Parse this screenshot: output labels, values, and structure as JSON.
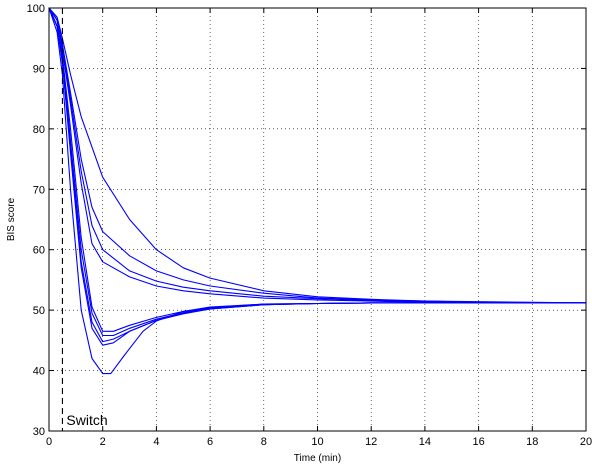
{
  "chart_data": {
    "type": "line",
    "title": "",
    "xlabel": "Time (min)",
    "ylabel": "BIS score",
    "xlim": [
      0,
      20
    ],
    "ylim": [
      30,
      100
    ],
    "xticks": [
      0,
      2,
      4,
      6,
      8,
      10,
      12,
      14,
      16,
      18,
      20
    ],
    "yticks": [
      30,
      40,
      50,
      60,
      70,
      80,
      90,
      100
    ],
    "grid": true,
    "line_color": "#0000ff",
    "annotation": {
      "text": "Switch",
      "x": 0.5
    },
    "series": [
      {
        "x": [
          0,
          0.3,
          0.5,
          0.8,
          1.2,
          2,
          3,
          4,
          5,
          6,
          8,
          10,
          12,
          14,
          16,
          18,
          20
        ],
        "y": [
          100,
          98.5,
          95,
          89,
          82,
          72,
          65,
          60,
          57,
          55.3,
          53.2,
          52.2,
          51.8,
          51.5,
          51.4,
          51.3,
          51.2
        ]
      },
      {
        "x": [
          0,
          0.3,
          0.5,
          0.8,
          1.2,
          1.6,
          2,
          3,
          4,
          5,
          6,
          8,
          10,
          12,
          14,
          16,
          18,
          20
        ],
        "y": [
          100,
          98,
          94,
          86,
          75,
          67,
          63,
          59,
          56.5,
          55,
          54,
          52.8,
          52,
          51.7,
          51.5,
          51.3,
          51.2,
          51.2
        ]
      },
      {
        "x": [
          0,
          0.3,
          0.5,
          0.8,
          1.2,
          1.6,
          2,
          3,
          4,
          5,
          6,
          8,
          10,
          12,
          14,
          16,
          18,
          20
        ],
        "y": [
          100,
          98,
          94,
          85,
          73,
          64,
          60,
          56.5,
          54.8,
          53.8,
          53.2,
          52.3,
          51.9,
          51.6,
          51.4,
          51.3,
          51.2,
          51.2
        ]
      },
      {
        "x": [
          0,
          0.3,
          0.5,
          0.8,
          1.2,
          1.6,
          2,
          3,
          4,
          5,
          6,
          8,
          10,
          12,
          14,
          16,
          18,
          20
        ],
        "y": [
          100,
          98,
          93,
          84,
          71,
          61,
          58,
          55.5,
          54,
          53.2,
          52.7,
          52,
          51.7,
          51.5,
          51.3,
          51.2,
          51.2,
          51.2
        ]
      },
      {
        "x": [
          0,
          0.3,
          0.5,
          0.8,
          1.2,
          1.6,
          2,
          2.4,
          3,
          4,
          5,
          6,
          8,
          10,
          12,
          14,
          16,
          18,
          20
        ],
        "y": [
          100,
          97,
          92,
          80,
          62,
          50.5,
          46.5,
          46.5,
          47.5,
          48.8,
          49.8,
          50.4,
          51,
          51.1,
          51.2,
          51.2,
          51.2,
          51.2,
          51.2
        ]
      },
      {
        "x": [
          0,
          0.3,
          0.5,
          0.8,
          1.2,
          1.6,
          2,
          2.4,
          3,
          4,
          5,
          6,
          8,
          10,
          12,
          14,
          16,
          18,
          20
        ],
        "y": [
          100,
          97,
          92,
          78,
          60,
          49.5,
          45.8,
          45.8,
          47,
          48.5,
          49.6,
          50.3,
          50.9,
          51.1,
          51.2,
          51.2,
          51.2,
          51.2,
          51.2
        ]
      },
      {
        "x": [
          0,
          0.3,
          0.5,
          0.8,
          1.2,
          1.6,
          2,
          2.4,
          3,
          4,
          5,
          6,
          8,
          10,
          12,
          14,
          16,
          18,
          20
        ],
        "y": [
          100,
          97,
          91,
          77,
          58,
          48,
          44.8,
          45.2,
          46.5,
          48.3,
          49.5,
          50.2,
          50.9,
          51.1,
          51.2,
          51.2,
          51.2,
          51.2,
          51.2
        ]
      },
      {
        "x": [
          0,
          0.3,
          0.5,
          0.8,
          1.2,
          1.6,
          2,
          2.4,
          3,
          4,
          5,
          6,
          8,
          10,
          12,
          14,
          16,
          18,
          20
        ],
        "y": [
          100,
          97,
          91,
          76,
          57,
          47,
          44.2,
          44.6,
          46.5,
          48.3,
          49.4,
          50.2,
          50.9,
          51.1,
          51.2,
          51.2,
          51.2,
          51.2,
          51.2
        ]
      },
      {
        "x": [
          0,
          0.3,
          0.5,
          0.8,
          1.2,
          1.6,
          2,
          2.3,
          2.8,
          3.5,
          4,
          5,
          6,
          8,
          10,
          12,
          14,
          16,
          18,
          20
        ],
        "y": [
          100,
          96,
          89,
          70,
          50,
          42,
          39.5,
          39.5,
          42.5,
          46.5,
          48.2,
          49.8,
          50.5,
          51,
          51.1,
          51.2,
          51.2,
          51.2,
          51.2,
          51.2
        ]
      }
    ]
  }
}
